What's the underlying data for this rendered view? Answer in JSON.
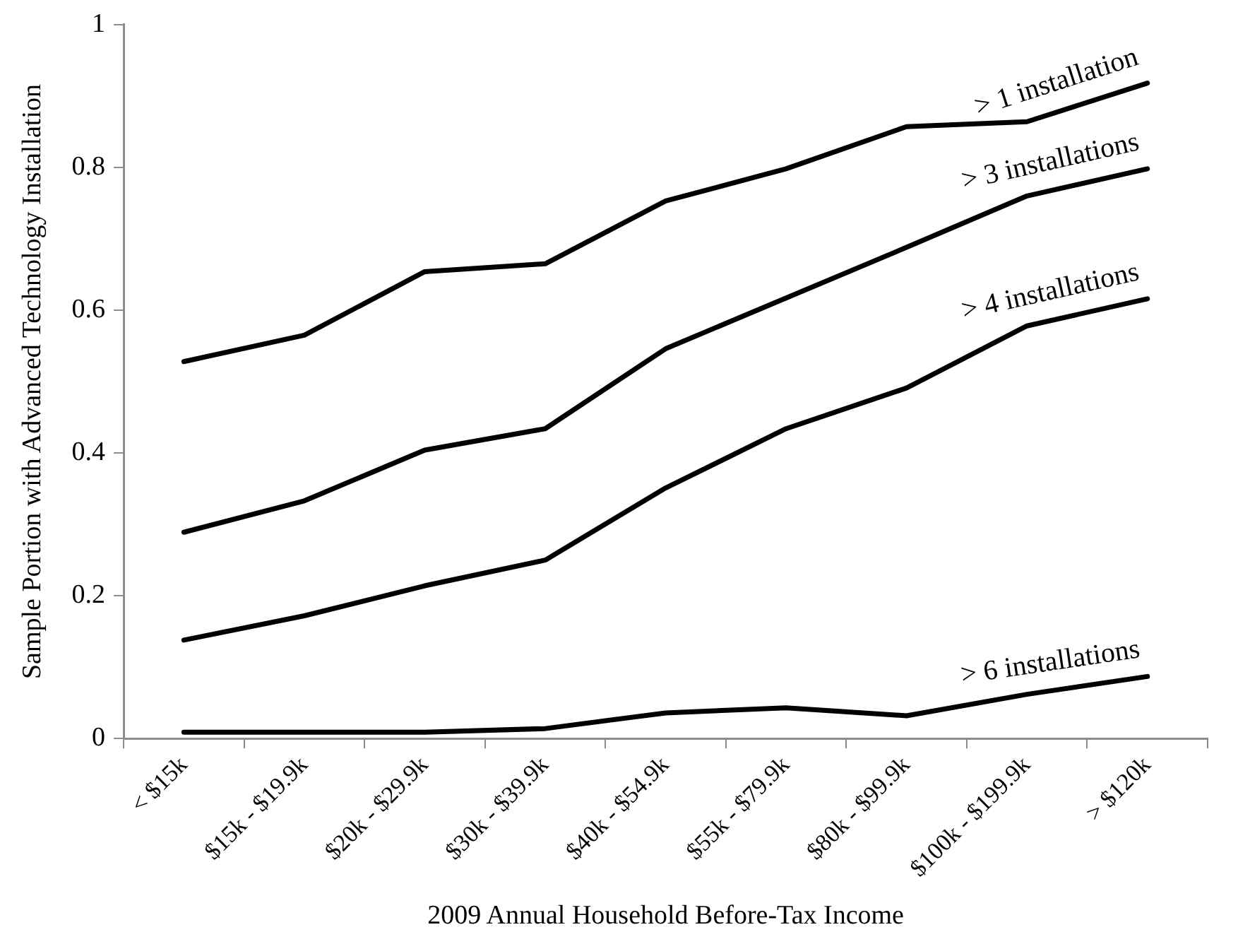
{
  "chart_data": {
    "type": "line",
    "xlabel": "2009 Annual Household Before-Tax Income",
    "ylabel": "Sample Portion with Advanced Technology Installation",
    "categories": [
      "< $15k",
      "$15k - $19.9k",
      "$20k - $29.9k",
      "$30k - $39.9k",
      "$40k - $54.9k",
      "$55k - $79.9k",
      "$80k - $99.9k",
      "$100k - $199.9k",
      "> $120k"
    ],
    "series": [
      {
        "name": "> 1 installation",
        "color": "#000000",
        "values": [
          0.528,
          0.565,
          0.654,
          0.665,
          0.753,
          0.798,
          0.857,
          0.864,
          0.918
        ]
      },
      {
        "name": "> 3 installations",
        "color": "#000000",
        "values": [
          0.289,
          0.333,
          0.404,
          0.434,
          0.546,
          0.617,
          0.688,
          0.76,
          0.798
        ]
      },
      {
        "name": "> 4 installations",
        "color": "#000000",
        "values": [
          0.138,
          0.172,
          0.214,
          0.25,
          0.351,
          0.434,
          0.491,
          0.578,
          0.616
        ]
      },
      {
        "name": "> 6 installations",
        "color": "#000000",
        "values": [
          0.009,
          0.009,
          0.009,
          0.014,
          0.036,
          0.043,
          0.032,
          0.062,
          0.087
        ]
      }
    ],
    "ylim": [
      0,
      1
    ],
    "yticks": [
      0,
      0.2,
      0.4,
      0.6,
      0.8,
      1
    ],
    "grid": false,
    "legend": false,
    "marker": "none",
    "line_style": "solid"
  }
}
